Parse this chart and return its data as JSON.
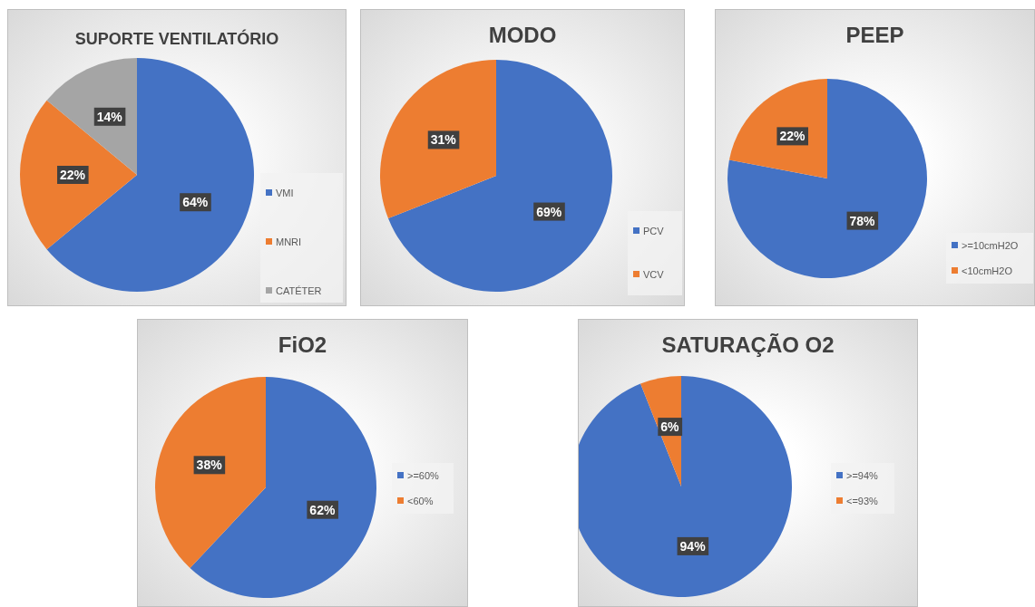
{
  "chart_data": [
    {
      "type": "pie",
      "title": "SUPORTE VENTILATÓRIO",
      "categories": [
        "VMI",
        "MNRI",
        "CATÉTER"
      ],
      "values": [
        64,
        22,
        14
      ],
      "colors": [
        "#4472c4",
        "#ed7d31",
        "#a5a5a5"
      ],
      "value_labels": [
        "64%",
        "22%",
        "14%"
      ],
      "legend": "right"
    },
    {
      "type": "pie",
      "title": "MODO",
      "categories": [
        "PCV",
        "VCV"
      ],
      "values": [
        69,
        31
      ],
      "colors": [
        "#4472c4",
        "#ed7d31"
      ],
      "value_labels": [
        "69%",
        "31%"
      ],
      "legend": "right"
    },
    {
      "type": "pie",
      "title": "PEEP",
      "categories": [
        ">=10cmH2O",
        "<10cmH2O"
      ],
      "values": [
        78,
        22
      ],
      "colors": [
        "#4472c4",
        "#ed7d31"
      ],
      "value_labels": [
        "78%",
        "22%"
      ],
      "legend": "right"
    },
    {
      "type": "pie",
      "title": "FiO2",
      "categories": [
        ">=60%",
        "<60%"
      ],
      "values": [
        62,
        38
      ],
      "colors": [
        "#4472c4",
        "#ed7d31"
      ],
      "value_labels": [
        "62%",
        "38%"
      ],
      "legend": "right"
    },
    {
      "type": "pie",
      "title": "SATURAÇÃO O2",
      "categories": [
        ">=94%",
        "<=93%"
      ],
      "values": [
        94,
        6
      ],
      "colors": [
        "#4472c4",
        "#ed7d31"
      ],
      "value_labels": [
        "94%",
        "6%"
      ],
      "legend": "right"
    }
  ]
}
